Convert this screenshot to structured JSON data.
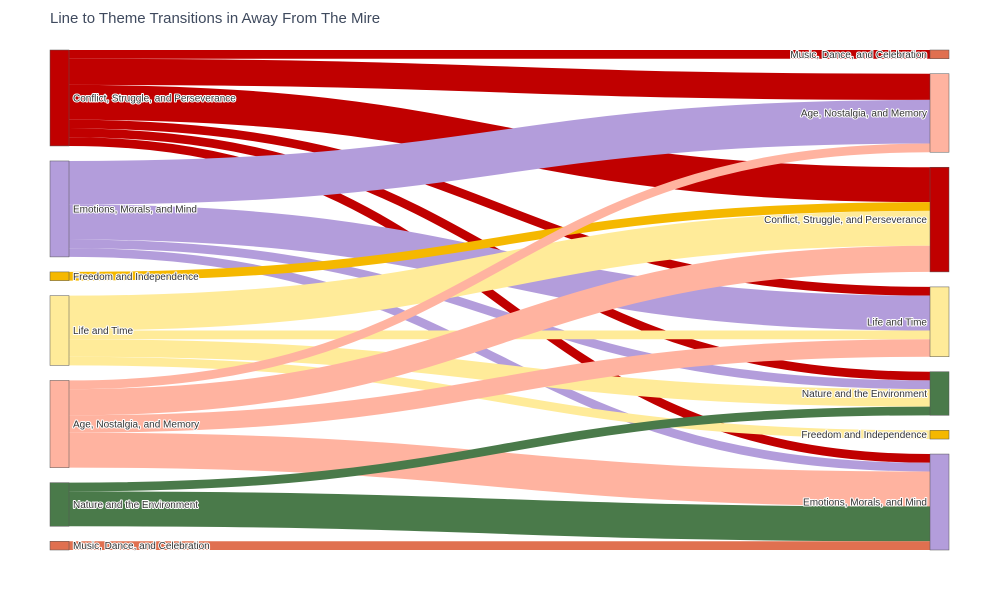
{
  "chart_data": {
    "type": "sankey",
    "title": "Line to Theme Transitions in Away From The Mire",
    "sources": [
      {
        "name": "Conflict, Struggle, and Perseverance",
        "color": "#c00000"
      },
      {
        "name": "Emotions, Morals, and Mind",
        "color": "#b39ddb"
      },
      {
        "name": "Freedom and Independence",
        "color": "#f5b800"
      },
      {
        "name": "Life and Time",
        "color": "#ffeb99"
      },
      {
        "name": "Age, Nostalgia, and Memory",
        "color": "#ffb3a0"
      },
      {
        "name": "Nature and the Environment",
        "color": "#4a7a4a"
      },
      {
        "name": "Music, Dance, and Celebration",
        "color": "#e07050"
      }
    ],
    "targets": [
      {
        "name": "Music, Dance, and Celebration",
        "color": "#e07050"
      },
      {
        "name": "Age, Nostalgia, and Memory",
        "color": "#ffb3a0"
      },
      {
        "name": "Conflict, Struggle, and Perseverance",
        "color": "#c00000"
      },
      {
        "name": "Life and Time",
        "color": "#ffeb99"
      },
      {
        "name": "Nature and the Environment",
        "color": "#4a7a4a"
      },
      {
        "name": "Freedom and Independence",
        "color": "#f5b800"
      },
      {
        "name": "Emotions, Morals, and Mind",
        "color": "#b39ddb"
      }
    ],
    "links": [
      {
        "source": 0,
        "target": 0,
        "value": 1
      },
      {
        "source": 0,
        "target": 1,
        "value": 3
      },
      {
        "source": 0,
        "target": 2,
        "value": 4
      },
      {
        "source": 0,
        "target": 3,
        "value": 1
      },
      {
        "source": 0,
        "target": 4,
        "value": 1
      },
      {
        "source": 0,
        "target": 6,
        "value": 1
      },
      {
        "source": 1,
        "target": 1,
        "value": 5
      },
      {
        "source": 1,
        "target": 3,
        "value": 4
      },
      {
        "source": 1,
        "target": 4,
        "value": 1
      },
      {
        "source": 1,
        "target": 6,
        "value": 1
      },
      {
        "source": 2,
        "target": 2,
        "value": 1
      },
      {
        "source": 3,
        "target": 2,
        "value": 4
      },
      {
        "source": 3,
        "target": 3,
        "value": 1
      },
      {
        "source": 3,
        "target": 4,
        "value": 2
      },
      {
        "source": 3,
        "target": 5,
        "value": 1
      },
      {
        "source": 4,
        "target": 1,
        "value": 1
      },
      {
        "source": 4,
        "target": 2,
        "value": 3
      },
      {
        "source": 4,
        "target": 3,
        "value": 2
      },
      {
        "source": 4,
        "target": 6,
        "value": 4
      },
      {
        "source": 5,
        "target": 4,
        "value": 1
      },
      {
        "source": 5,
        "target": 6,
        "value": 4
      },
      {
        "source": 6,
        "target": 6,
        "value": 1
      }
    ]
  }
}
